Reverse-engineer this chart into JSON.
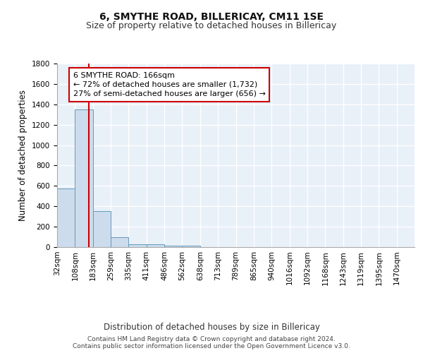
{
  "title": "6, SMYTHE ROAD, BILLERICAY, CM11 1SE",
  "subtitle": "Size of property relative to detached houses in Billericay",
  "xlabel": "Distribution of detached houses by size in Billericay",
  "ylabel": "Number of detached properties",
  "bin_edges": [
    32,
    108,
    183,
    259,
    335,
    411,
    486,
    562,
    638,
    713,
    789,
    865,
    940,
    1016,
    1092,
    1168,
    1243,
    1319,
    1395,
    1470,
    1546
  ],
  "bin_counts": [
    575,
    1350,
    350,
    95,
    30,
    25,
    15,
    15,
    0,
    0,
    0,
    0,
    0,
    0,
    0,
    0,
    0,
    0,
    0,
    0
  ],
  "bar_facecolor": "#ccdcec",
  "bar_edgecolor": "#6699bb",
  "property_size": 166,
  "red_line_color": "#cc0000",
  "annotation_line1": "6 SMYTHE ROAD: 166sqm",
  "annotation_line2": "← 72% of detached houses are smaller (1,732)",
  "annotation_line3": "27% of semi-detached houses are larger (656) →",
  "annotation_box_edgecolor": "#cc0000",
  "annotation_box_facecolor": "#ffffff",
  "ylim": [
    0,
    1800
  ],
  "yticks": [
    0,
    200,
    400,
    600,
    800,
    1000,
    1200,
    1400,
    1600,
    1800
  ],
  "bg_color": "#e8f0f8",
  "grid_color": "#ffffff",
  "footer_line1": "Contains HM Land Registry data © Crown copyright and database right 2024.",
  "footer_line2": "Contains public sector information licensed under the Open Government Licence v3.0.",
  "title_fontsize": 10,
  "subtitle_fontsize": 9,
  "axis_label_fontsize": 8.5,
  "tick_fontsize": 7.5,
  "annotation_fontsize": 8,
  "footer_fontsize": 6.5
}
